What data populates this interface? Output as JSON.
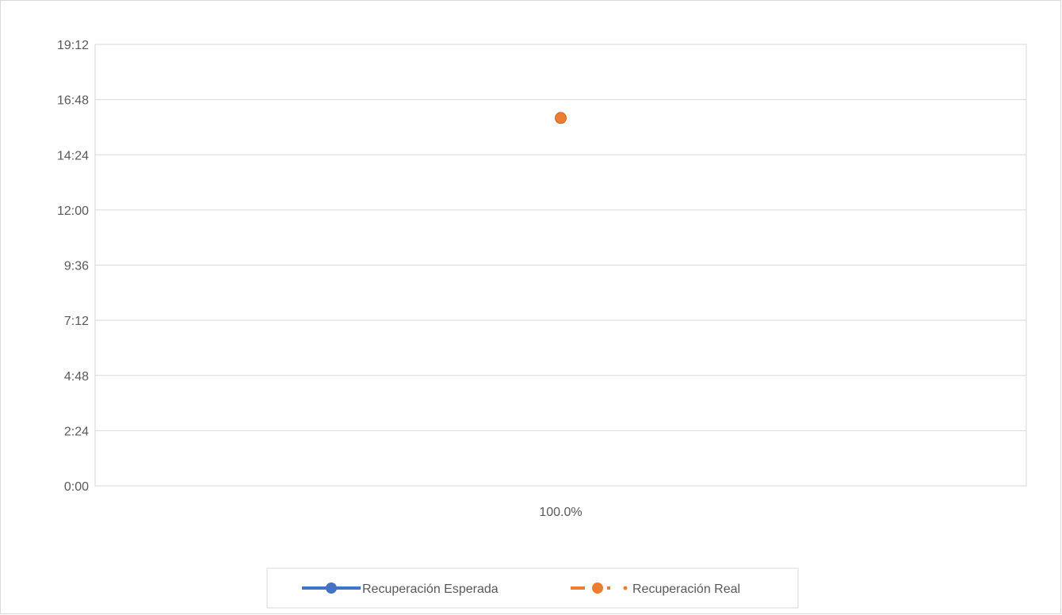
{
  "chart_data": {
    "type": "line",
    "title": "",
    "xlabel": "",
    "ylabel": "",
    "categories": [
      "100.0%"
    ],
    "y_tick_labels": [
      "0:00",
      "2:24",
      "4:48",
      "7:12",
      "9:36",
      "12:00",
      "14:24",
      "16:48",
      "19:12"
    ],
    "ylim_minutes": [
      0,
      1152
    ],
    "y_tick_step_minutes": 144,
    "grid": true,
    "legend_position": "bottom",
    "series": [
      {
        "name": "Recuperación Esperada",
        "values": [
          null
        ],
        "color": "#4472c4",
        "style": "solid-line-circle-marker"
      },
      {
        "name": "Recuperación Real",
        "values": [
          16.0
        ],
        "value_minutes": [
          960
        ],
        "color": "#ed7d31",
        "style": "dashed-line-circle-marker"
      }
    ]
  }
}
